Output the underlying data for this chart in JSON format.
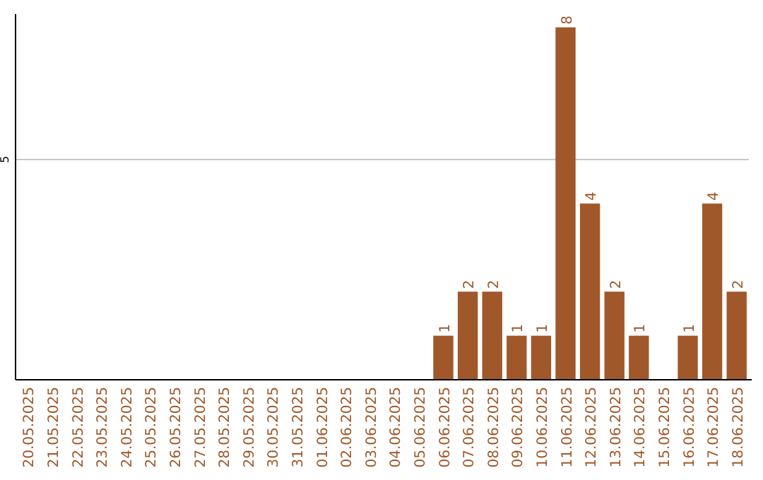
{
  "chart_data": {
    "type": "bar",
    "categories": [
      "20.05.2025",
      "21.05.2025",
      "22.05.2025",
      "23.05.2025",
      "24.05.2025",
      "25.05.2025",
      "26.05.2025",
      "27.05.2025",
      "28.05.2025",
      "29.05.2025",
      "30.05.2025",
      "31.05.2025",
      "01.06.2025",
      "02.06.2025",
      "03.06.2025",
      "04.06.2025",
      "05.06.2025",
      "06.06.2025",
      "07.06.2025",
      "08.06.2025",
      "09.06.2025",
      "10.06.2025",
      "11.06.2025",
      "12.06.2025",
      "13.06.2025",
      "14.06.2025",
      "15.06.2025",
      "16.06.2025",
      "17.06.2025",
      "18.06.2025"
    ],
    "values": [
      null,
      null,
      null,
      null,
      null,
      null,
      null,
      null,
      null,
      null,
      null,
      null,
      null,
      null,
      null,
      null,
      null,
      1,
      2,
      2,
      1,
      1,
      8,
      4,
      2,
      1,
      null,
      1,
      4,
      2
    ],
    "data_labels": true,
    "ylim": [
      0,
      8.3
    ],
    "color": "#a0582a",
    "ref_lines": [
      {
        "axis": "y",
        "value": 5,
        "label": "5",
        "color": "#c8c8c8"
      }
    ]
  }
}
